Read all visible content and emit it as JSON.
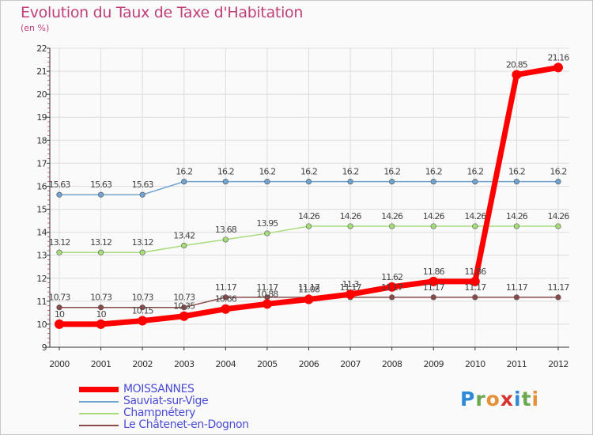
{
  "header": {
    "title": "Evolution du Taux de Taxe d'Habitation",
    "subtitle": "(en %)"
  },
  "logo": {
    "letters": [
      "P",
      "r",
      "o",
      "x",
      "i",
      "t",
      "i"
    ],
    "colors": [
      "#2d8ad6",
      "#6aa84f",
      "#e69138",
      "#d93030",
      "#2d8ad6",
      "#6aa84f",
      "#e69138"
    ]
  },
  "chart_data": {
    "type": "line",
    "title": "Evolution du Taux de Taxe d'Habitation",
    "ylabel": "(en %)",
    "xlabel": "",
    "x": [
      "2000",
      "2001",
      "2002",
      "2003",
      "2004",
      "2005",
      "2006",
      "2007",
      "2008",
      "2009",
      "2010",
      "2011",
      "2012"
    ],
    "ylim": [
      9,
      22
    ],
    "yticks": [
      9,
      10,
      11,
      12,
      13,
      14,
      15,
      16,
      17,
      18,
      19,
      20,
      21,
      22
    ],
    "grid": true,
    "legend_position": "bottom-left",
    "series": [
      {
        "name": "MOISSANNES",
        "color": "#ff0000",
        "values": [
          10,
          10,
          10.15,
          10.35,
          10.66,
          10.88,
          11.08,
          11.3,
          11.62,
          11.86,
          11.86,
          20.85,
          21.16
        ],
        "labels": [
          "10",
          "10",
          "10.15",
          "10.35",
          "10.66",
          "10.88",
          "11.08",
          "11.3",
          "11.62",
          "11.86",
          "11.86",
          "20.85",
          "21.16"
        ]
      },
      {
        "name": "Sauviat-sur-Vige",
        "color": "#6fa3d0",
        "values": [
          15.63,
          15.63,
          15.63,
          16.2,
          16.2,
          16.2,
          16.2,
          16.2,
          16.2,
          16.2,
          16.2,
          16.2,
          16.2
        ],
        "labels": [
          "15.63",
          "15.63",
          "15.63",
          "16.2",
          "16.2",
          "16.2",
          "16.2",
          "16.2",
          "16.2",
          "16.2",
          "16.2",
          "16.2",
          "16.2"
        ]
      },
      {
        "name": "Champnétery",
        "color": "#a6dc7c",
        "values": [
          13.12,
          13.12,
          13.12,
          13.42,
          13.68,
          13.95,
          14.26,
          14.26,
          14.26,
          14.26,
          14.26,
          14.26,
          14.26
        ],
        "labels": [
          "13.12",
          "13.12",
          "13.12",
          "13.42",
          "13.68",
          "13.95",
          "14.26",
          "14.26",
          "14.26",
          "14.26",
          "14.26",
          "14.26",
          "14.26"
        ]
      },
      {
        "name": "Le Châtenet-en-Dognon",
        "color": "#8b4a4a",
        "values": [
          10.73,
          10.73,
          10.73,
          10.73,
          11.17,
          11.17,
          11.17,
          11.17,
          11.17,
          11.17,
          11.17,
          11.17,
          11.17
        ],
        "labels": [
          "10.73",
          "10.73",
          "10.73",
          "10.73",
          "11.17",
          "11.17",
          "11.17",
          "11.17",
          "11.17",
          "11.17",
          "11.17",
          "11.17",
          "11.17"
        ]
      }
    ]
  }
}
